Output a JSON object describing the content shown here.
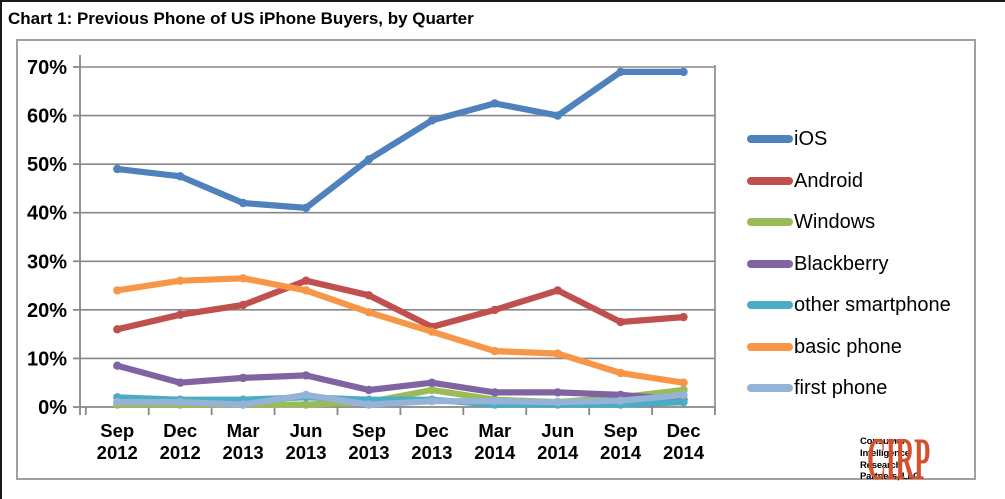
{
  "page": {
    "title": "Chart 1: Previous Phone of US iPhone Buyers, by Quarter"
  },
  "chart_data": {
    "type": "line",
    "title": "Chart 1: Previous Phone of US iPhone Buyers, by Quarter",
    "categories": [
      "Sep 2012",
      "Dec 2012",
      "Mar 2013",
      "Jun 2013",
      "Sep 2013",
      "Dec 2013",
      "Mar 2014",
      "Jun 2014",
      "Sep 2014",
      "Dec 2014"
    ],
    "series": [
      {
        "name": "iOS",
        "color": "#4F81BD",
        "values": [
          49,
          47.5,
          42,
          41,
          51,
          59,
          62.5,
          60,
          69,
          69
        ]
      },
      {
        "name": "Android",
        "color": "#C0504D",
        "values": [
          16,
          19,
          21,
          26,
          23,
          16.5,
          20,
          24,
          17.5,
          18.5
        ]
      },
      {
        "name": "Windows",
        "color": "#9BBB59",
        "values": [
          0.5,
          0.5,
          0.5,
          0.5,
          1,
          3.5,
          1.5,
          1,
          2,
          3.5
        ]
      },
      {
        "name": "Blackberry",
        "color": "#8064A2",
        "values": [
          8.5,
          5,
          6,
          6.5,
          3.5,
          5,
          3,
          3,
          2.5,
          1.5
        ]
      },
      {
        "name": "other smartphone",
        "color": "#4BACC6",
        "values": [
          2,
          1.5,
          1.5,
          2,
          1.5,
          1.5,
          0.5,
          0.5,
          0.5,
          1
        ]
      },
      {
        "name": "basic phone",
        "color": "#F79646",
        "values": [
          24,
          26,
          26.5,
          24,
          19.5,
          15.5,
          11.5,
          11,
          7,
          5
        ]
      },
      {
        "name": "first phone",
        "color": "#95B3D7",
        "values": [
          1,
          1,
          0.5,
          2.5,
          0.5,
          1.2,
          1.2,
          1,
          1.3,
          2.5
        ]
      }
    ],
    "ylim": [
      0,
      70
    ],
    "ytick_step": 10,
    "ytick_labels": [
      "0%",
      "10%",
      "20%",
      "30%",
      "40%",
      "50%",
      "60%",
      "70%"
    ],
    "grid": true,
    "legend_position": "right",
    "xlabel": "",
    "ylabel": ""
  },
  "logo": {
    "brand": "CIRP",
    "brand_color": "#D6502E",
    "lines": [
      "Consumer",
      "Intelligence",
      "Research",
      "Partners, LLC"
    ]
  },
  "colors": {
    "gridline": "#878787",
    "axis": "#878787",
    "chart_border": "#a0a0a0"
  }
}
